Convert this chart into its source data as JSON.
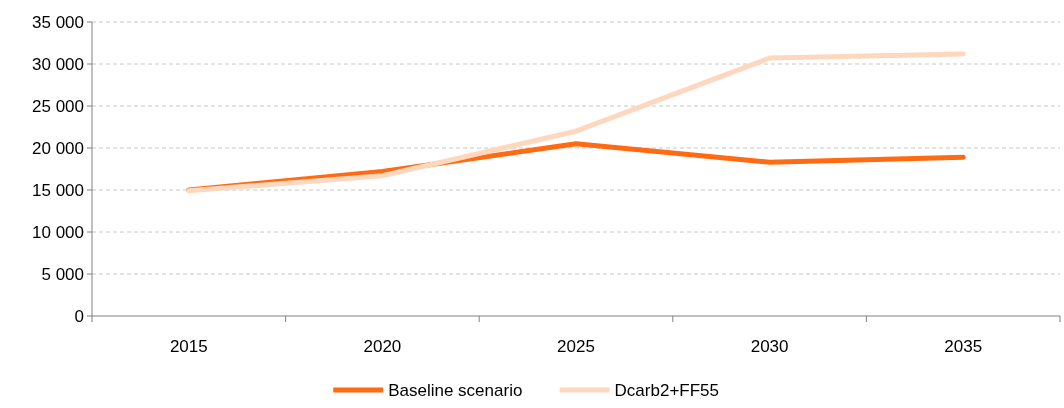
{
  "chart_data": {
    "type": "line",
    "categories": [
      "2015",
      "2020",
      "2025",
      "2030",
      "2035"
    ],
    "series": [
      {
        "name": "Baseline scenario",
        "color": "#ff6a13",
        "values": [
          15000,
          17200,
          20500,
          18300,
          18900
        ]
      },
      {
        "name": "Dcarb2+FF55",
        "color": "#fdd8be",
        "values": [
          14900,
          16700,
          22000,
          30700,
          31200
        ]
      }
    ],
    "ylim": [
      0,
      35000
    ],
    "yticks": [
      0,
      {
        "value": 5000,
        "label": "5 000"
      },
      {
        "value": 10000,
        "label": "10 000"
      },
      {
        "value": 15000,
        "label": "15 000"
      },
      {
        "value": 20000,
        "label": "20 000"
      },
      {
        "value": 25000,
        "label": "25 000"
      },
      {
        "value": 30000,
        "label": "30 000"
      },
      {
        "value": 35000,
        "label": "35 000"
      }
    ],
    "grid": "y",
    "legend": "bottom",
    "line_style": "solid"
  }
}
